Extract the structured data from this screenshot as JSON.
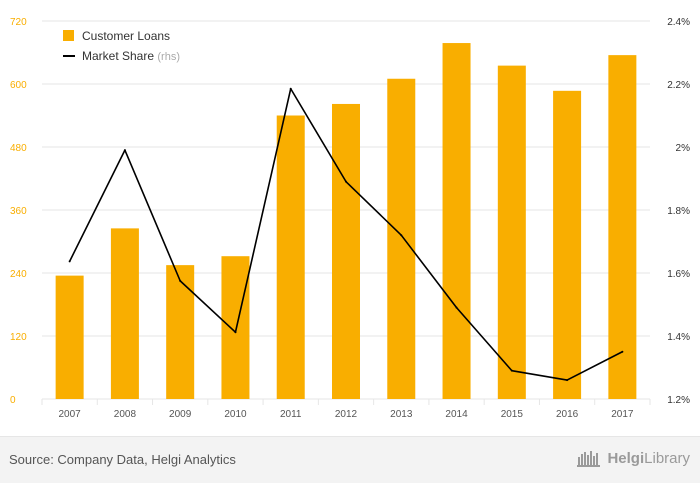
{
  "chart_data": {
    "type": "bar",
    "categories": [
      "2007",
      "2008",
      "2009",
      "2010",
      "2011",
      "2012",
      "2013",
      "2014",
      "2015",
      "2016",
      "2017"
    ],
    "series": [
      {
        "name": "Customer Loans",
        "type": "bar",
        "axis": "left",
        "color": "#f9ae00",
        "values": [
          235,
          325,
          255,
          272,
          540,
          562,
          610,
          678,
          635,
          587,
          655
        ]
      },
      {
        "name": "Market Share",
        "name_suffix": "(rhs)",
        "type": "line",
        "axis": "right",
        "color": "#000000",
        "values": [
          1.637,
          1.99,
          1.575,
          1.412,
          2.185,
          1.89,
          1.72,
          1.49,
          1.29,
          1.26,
          1.35
        ]
      }
    ],
    "y_left": {
      "min": 0,
      "max": 720,
      "ticks": [
        0,
        120,
        240,
        360,
        480,
        600,
        720
      ],
      "tick_labels": [
        "0",
        "120",
        "240",
        "360",
        "480",
        "600",
        "720"
      ]
    },
    "y_right": {
      "min": 1.2,
      "max": 2.4,
      "ticks": [
        1.2,
        1.4,
        1.6,
        1.8,
        2.0,
        2.2,
        2.4
      ],
      "tick_labels": [
        "1.2%",
        "1.4%",
        "1.6%",
        "1.8%",
        "2%",
        "2.2%",
        "2.4%"
      ]
    },
    "grid": true,
    "legend_position": "top-left",
    "legend": [
      {
        "label": "Customer Loans",
        "suffix": ""
      },
      {
        "label": "Market Share",
        "suffix": "(rhs)"
      }
    ]
  },
  "footer": {
    "source": "Source: Company Data, Helgi Analytics",
    "brand_prefix": "Helgi",
    "brand_suffix": "Library"
  },
  "colors": {
    "bar": "#f9ae00",
    "line": "#000000",
    "grid": "#e6e6e6",
    "left_tick": "#f9ae00",
    "right_tick": "#333333",
    "x_tick": "#555555"
  }
}
